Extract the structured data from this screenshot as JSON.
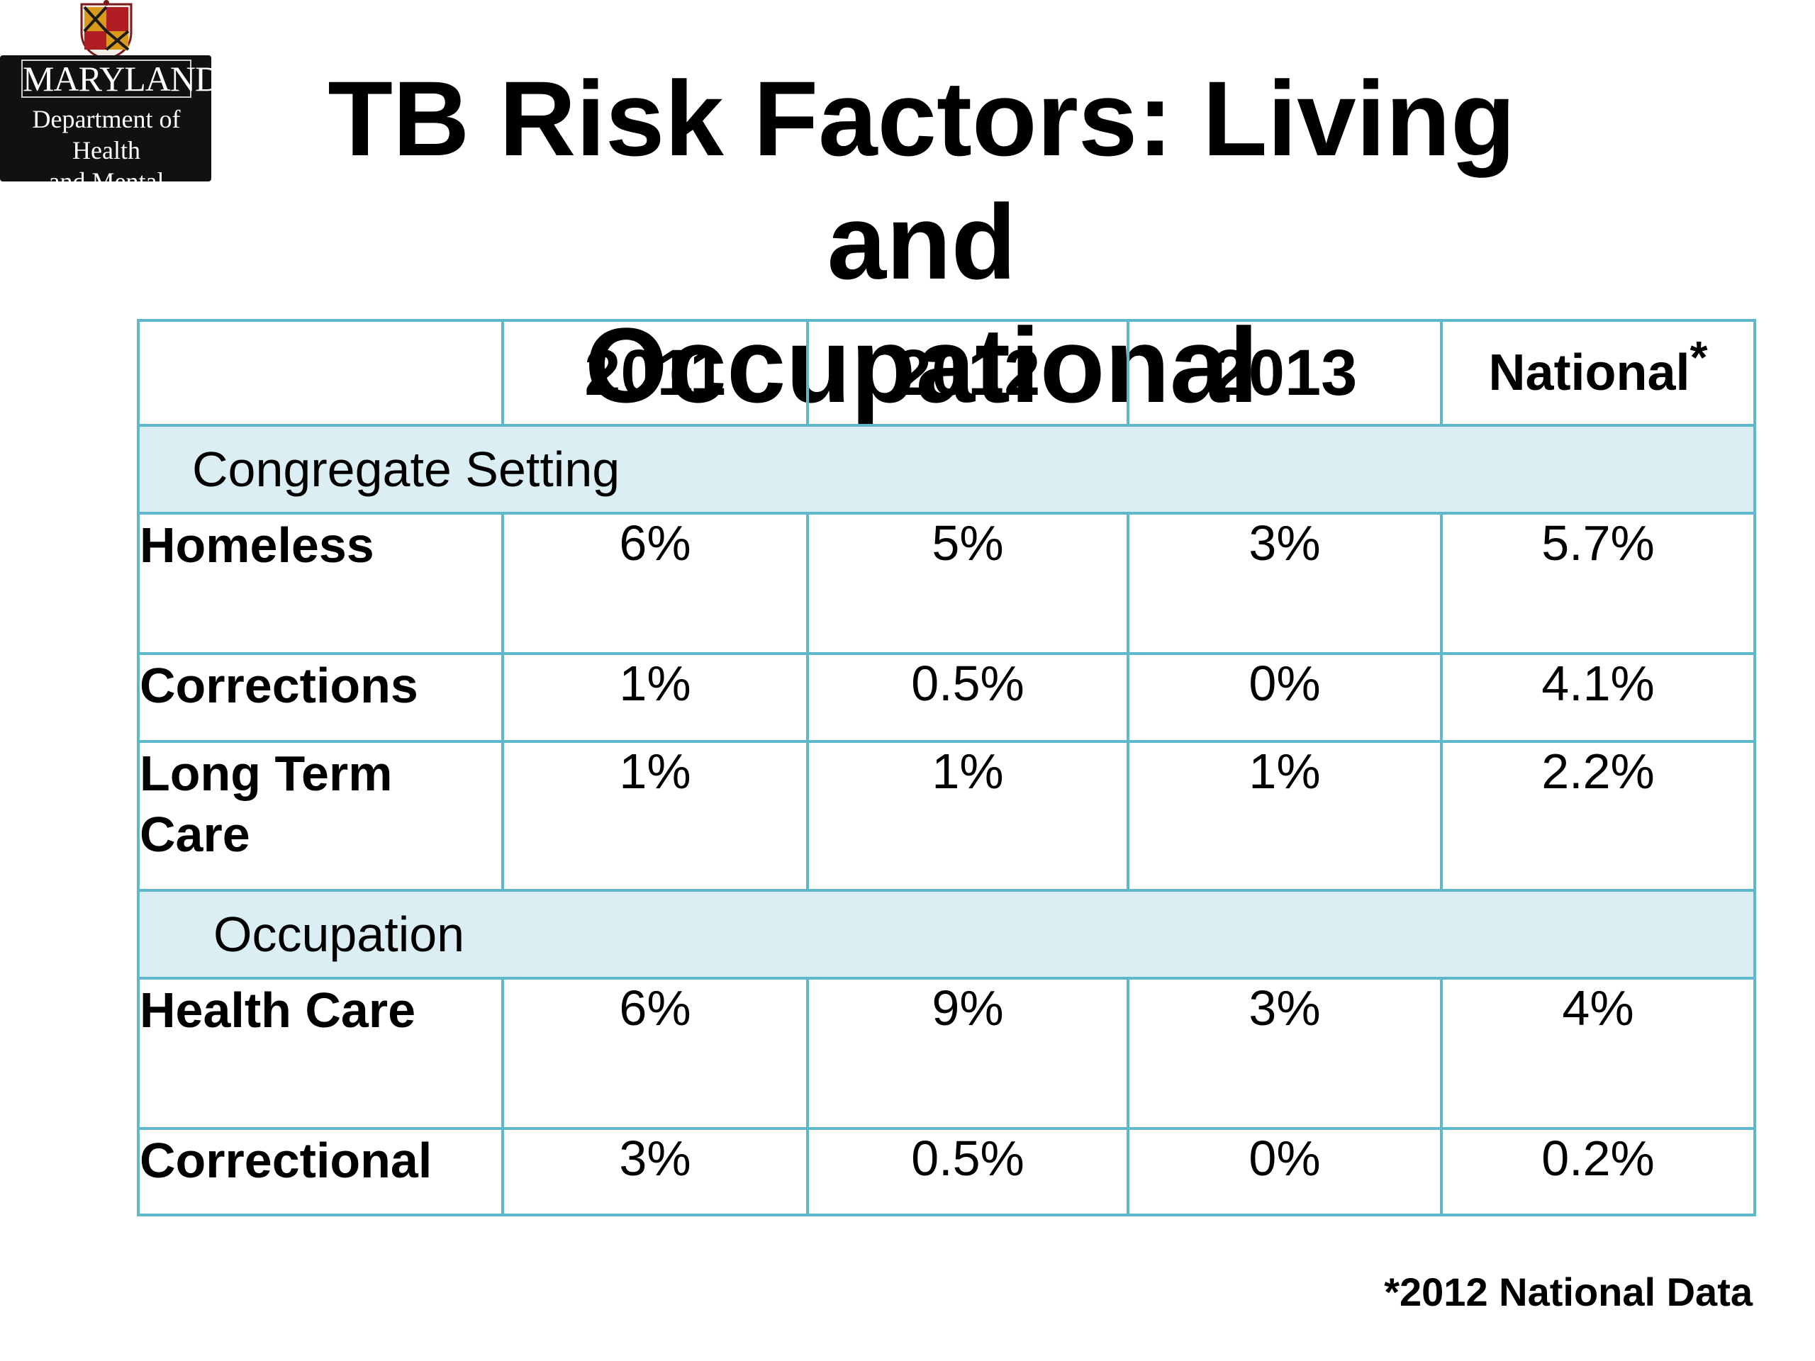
{
  "logo": {
    "name": "MARYLAND",
    "dept_line1": "Department of Health",
    "dept_line2": "and Mental Hygiene"
  },
  "title": {
    "line1": "TB Risk Factors: Living and",
    "line2": "Occupational"
  },
  "table": {
    "header": {
      "corner": "",
      "cols": [
        "2011",
        "2012",
        "2013"
      ],
      "national": "National",
      "national_mark": "*"
    },
    "sections": [
      {
        "label": "Congregate Setting",
        "rows": [
          {
            "label": "Homeless",
            "values": [
              "6%",
              "5%",
              "3%",
              "5.7%"
            ]
          },
          {
            "label": "Corrections",
            "values": [
              "1%",
              "0.5%",
              "0%",
              "4.1%"
            ]
          },
          {
            "label": "Long Term Care",
            "values": [
              "1%",
              "1%",
              "1%",
              "2.2%"
            ]
          }
        ]
      },
      {
        "label": "Occupation",
        "rows": [
          {
            "label": "Health Care",
            "values": [
              "6%",
              "9%",
              "3%",
              "4%"
            ]
          },
          {
            "label": "Correctional",
            "values": [
              "3%",
              "0.5%",
              "0%",
              "0.2%"
            ]
          }
        ]
      }
    ]
  },
  "footnote": "*2012 National Data",
  "colors": {
    "border": "#5fb8c9",
    "section_fill": "#daeef3",
    "text": "#000000"
  }
}
